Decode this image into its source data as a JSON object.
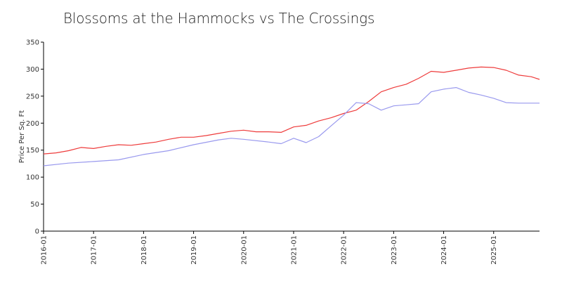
{
  "chart_data": {
    "type": "line",
    "title": "Blossoms at the Hammocks vs The Crossings",
    "xlabel": "",
    "ylabel": "Price Per Sq. Ft",
    "ylim": [
      0,
      350
    ],
    "yticks": [
      0,
      50,
      100,
      150,
      200,
      250,
      300,
      350
    ],
    "xlim": [
      "2016-01",
      "2025-12"
    ],
    "xticks": [
      "2016-01",
      "2017-01",
      "2018-01",
      "2019-01",
      "2020-01",
      "2021-01",
      "2022-01",
      "2023-01",
      "2024-01",
      "2025-01"
    ],
    "grid": false,
    "legend": "none",
    "colors": [
      "#ee3b3b",
      "#9999ee"
    ],
    "series": [
      {
        "x": [
          "2016-01",
          "2016-04",
          "2016-07",
          "2016-10",
          "2017-01",
          "2017-04",
          "2017-07",
          "2017-10",
          "2018-01",
          "2018-04",
          "2018-07",
          "2018-10",
          "2019-01",
          "2019-04",
          "2019-07",
          "2019-10",
          "2020-01",
          "2020-04",
          "2020-07",
          "2020-10",
          "2021-01",
          "2021-04",
          "2021-07",
          "2021-10",
          "2022-01",
          "2022-04",
          "2022-07",
          "2022-10",
          "2023-01",
          "2023-04",
          "2023-07",
          "2023-10",
          "2024-01",
          "2024-04",
          "2024-07",
          "2024-10",
          "2025-01",
          "2025-04",
          "2025-07",
          "2025-10",
          "2025-12"
        ],
        "values": [
          143,
          145,
          149,
          155,
          153,
          157,
          160,
          159,
          162,
          165,
          170,
          174,
          174,
          177,
          181,
          185,
          187,
          184,
          184,
          183,
          193,
          196,
          204,
          210,
          218,
          224,
          240,
          258,
          266,
          272,
          283,
          296,
          294,
          298,
          302,
          304,
          303,
          298,
          289,
          286,
          281
        ]
      },
      {
        "x": [
          "2016-01",
          "2016-07",
          "2017-01",
          "2017-07",
          "2018-01",
          "2018-07",
          "2019-01",
          "2019-07",
          "2019-10",
          "2020-01",
          "2020-07",
          "2020-10",
          "2021-01",
          "2021-04",
          "2021-07",
          "2021-10",
          "2022-01",
          "2022-04",
          "2022-07",
          "2022-10",
          "2023-01",
          "2023-04",
          "2023-07",
          "2023-10",
          "2024-01",
          "2024-04",
          "2024-07",
          "2024-10",
          "2025-01",
          "2025-04",
          "2025-07",
          "2025-10",
          "2025-12"
        ],
        "values": [
          121,
          126,
          129,
          132,
          142,
          149,
          160,
          169,
          172,
          170,
          165,
          162,
          172,
          164,
          175,
          195,
          215,
          238,
          236,
          224,
          232,
          234,
          236,
          258,
          263,
          266,
          257,
          252,
          246,
          238,
          237,
          237,
          237
        ]
      }
    ]
  }
}
